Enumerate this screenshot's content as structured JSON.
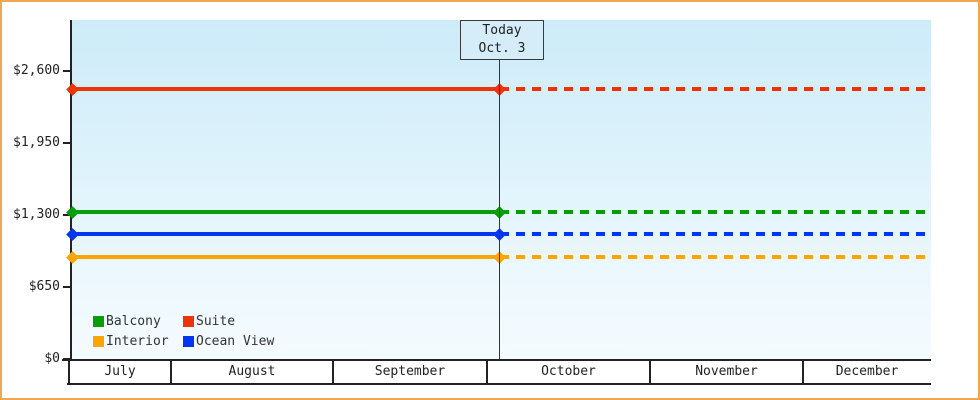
{
  "frame": {
    "border_color": "#efa64f"
  },
  "chart_data": {
    "type": "line",
    "x_axis": {
      "unit": "month",
      "categories": [
        "July",
        "August",
        "September",
        "October",
        "November",
        "December"
      ]
    },
    "y_axis": {
      "ticks": [
        {
          "label": "$0",
          "value": 0
        },
        {
          "label": "$650",
          "value": 650
        },
        {
          "label": "$1,300",
          "value": 1300
        },
        {
          "label": "$1,950",
          "value": 1950
        },
        {
          "label": "$2,600",
          "value": 2600
        }
      ],
      "ylim": [
        0,
        2860
      ],
      "grid": false
    },
    "today_marker": {
      "line1": "Today",
      "line2": "Oct. 3"
    },
    "series": [
      {
        "name": "Suite",
        "color": "#ee3309",
        "value": 2435
      },
      {
        "name": "Balcony",
        "color": "#089e08",
        "value": 1330
      },
      {
        "name": "Ocean View",
        "color": "#0435f0",
        "value": 1125
      },
      {
        "name": "Interior",
        "color": "#f9a602",
        "value": 925
      }
    ],
    "legend": {
      "position": "bottom-left-inside",
      "rows": [
        [
          "Balcony",
          "Suite"
        ],
        [
          "Interior",
          "Ocean View"
        ]
      ]
    },
    "style_notes": {
      "solid_segment": "history: left edge to today line",
      "dashed_segment": "projection: today line to right edge"
    }
  }
}
